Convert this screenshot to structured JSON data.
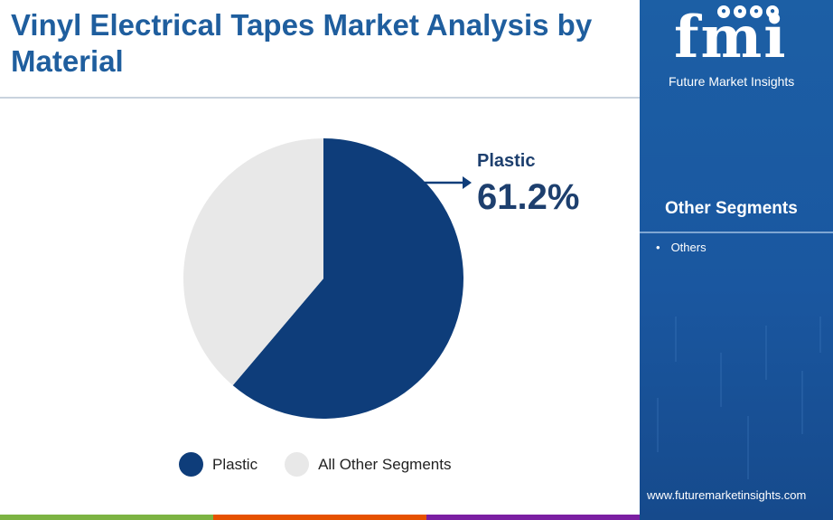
{
  "header": {
    "title": "Vinyl Electrical Tapes Market Analysis by Material"
  },
  "chart_data": {
    "type": "pie",
    "title": "Vinyl Electrical Tapes Market Analysis by Material",
    "categories": [
      "Plastic",
      "All Other Segments"
    ],
    "values": [
      61.2,
      38.8
    ],
    "unit": "%",
    "colors": [
      "#0e3d7a",
      "#e8e8e8"
    ],
    "callout": {
      "label": "Plastic",
      "value": "61.2%"
    },
    "legend": {
      "position": "bottom",
      "items": [
        "Plastic",
        "All Other Segments"
      ]
    }
  },
  "side_panel": {
    "logo_text": "fmi",
    "logo_subtitle": "Future Market Insights",
    "heading": "Other Segments",
    "items": [
      "Others"
    ],
    "url": "www.futuremarketinsights.com"
  },
  "bottom_bar_colors": [
    "#7cb342",
    "#e65100",
    "#7b1fa2"
  ]
}
